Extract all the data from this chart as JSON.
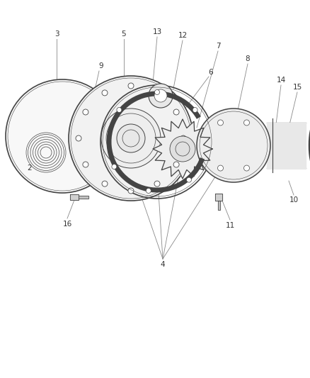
{
  "bg_color": "#ffffff",
  "line_color": "#444444",
  "label_color": "#333333",
  "leader_color": "#888888",
  "fig_width": 4.39,
  "fig_height": 5.33,
  "dpi": 100
}
